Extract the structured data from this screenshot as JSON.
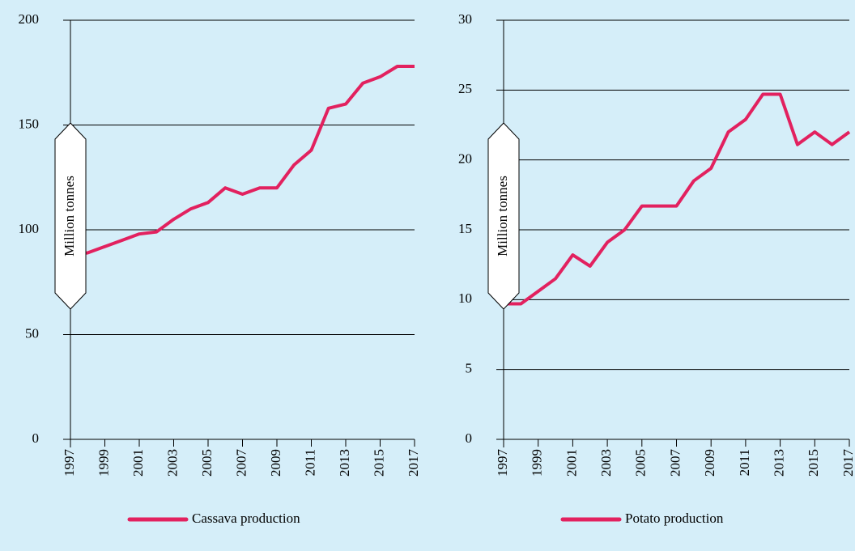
{
  "chart_data": [
    {
      "type": "line",
      "y_label": "Million tonnes",
      "x": [
        1997,
        1998,
        1999,
        2000,
        2001,
        2002,
        2003,
        2004,
        2005,
        2006,
        2007,
        2008,
        2009,
        2010,
        2011,
        2012,
        2013,
        2014,
        2015,
        2016,
        2017
      ],
      "series": [
        {
          "name": "Cassava production",
          "color": "#e2215f",
          "values": [
            88,
            89,
            92,
            95,
            98,
            99,
            105,
            110,
            113,
            120,
            117,
            120,
            120,
            131,
            138,
            158,
            160,
            170,
            173,
            178,
            178
          ]
        }
      ],
      "xlim": [
        1997,
        2017
      ],
      "xticks": [
        1997,
        1999,
        2001,
        2003,
        2005,
        2007,
        2009,
        2011,
        2013,
        2015,
        2017
      ],
      "ylim": [
        0,
        200
      ],
      "yticks": [
        0,
        50,
        100,
        150,
        200
      ],
      "grid": true
    },
    {
      "type": "line",
      "y_label": "Million tonnes",
      "x": [
        1997,
        1998,
        1999,
        2000,
        2001,
        2002,
        2003,
        2004,
        2005,
        2006,
        2007,
        2008,
        2009,
        2010,
        2011,
        2012,
        2013,
        2014,
        2015,
        2016,
        2017
      ],
      "series": [
        {
          "name": "Potato production",
          "color": "#e2215f",
          "values": [
            9.7,
            9.7,
            10.6,
            11.5,
            13.2,
            12.4,
            14.1,
            15,
            16.7,
            16.7,
            16.7,
            18.5,
            19.4,
            22,
            22.9,
            24.7,
            24.7,
            21.1,
            22,
            21.1,
            22
          ]
        }
      ],
      "xlim": [
        1997,
        2017
      ],
      "xticks": [
        1997,
        1999,
        2001,
        2003,
        2005,
        2007,
        2009,
        2011,
        2013,
        2015,
        2017
      ],
      "ylim": [
        0,
        30
      ],
      "yticks": [
        0,
        5,
        10,
        15,
        20,
        25,
        30
      ],
      "grid": true
    }
  ]
}
